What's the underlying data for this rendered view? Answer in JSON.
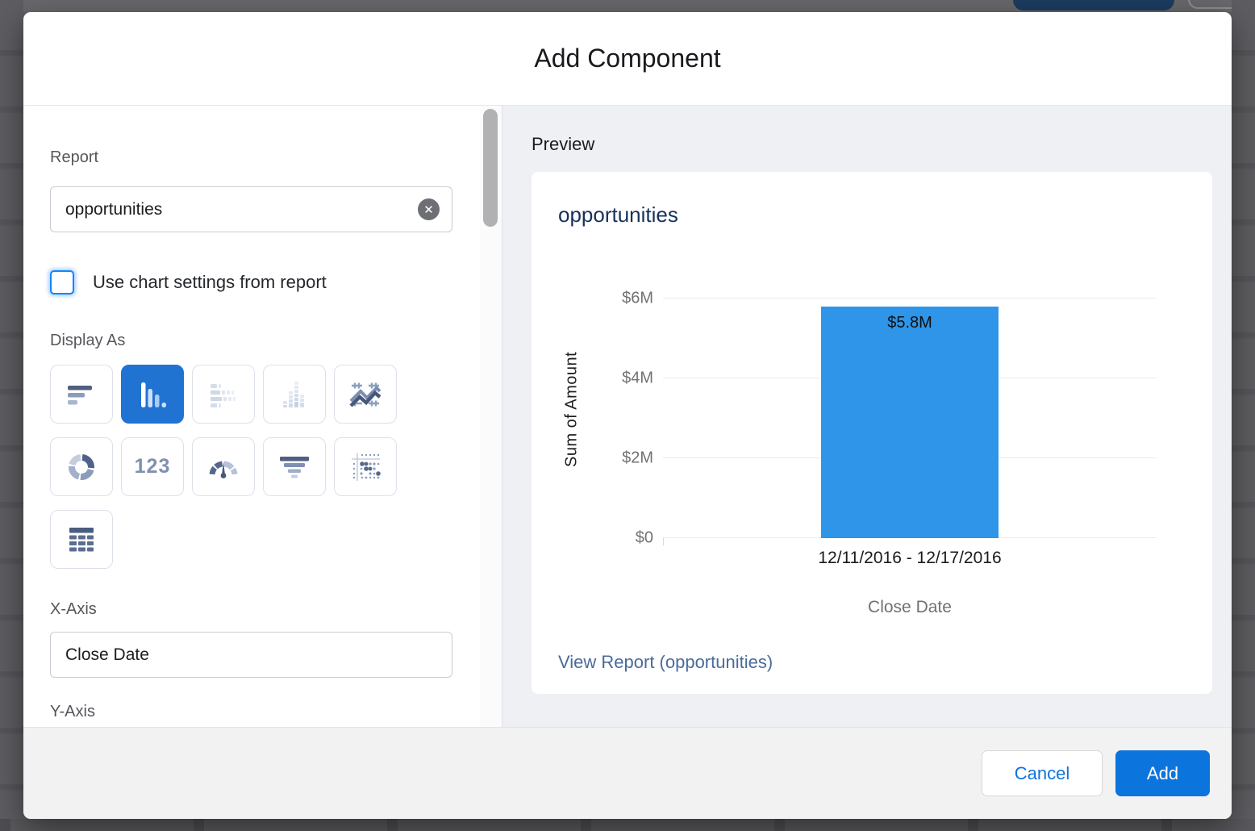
{
  "modal": {
    "title": "Add Component",
    "left_panel": {
      "report_label": "Report",
      "report_value": "opportunities",
      "use_chart_settings_label": "Use chart settings from report",
      "use_chart_settings_checked": false,
      "display_as_label": "Display As",
      "display_options": [
        {
          "name": "horizontal-bar-chart",
          "selected": false,
          "disabled": false
        },
        {
          "name": "vertical-bar-chart",
          "selected": true,
          "disabled": false
        },
        {
          "name": "stacked-horizontal-bar-chart",
          "selected": false,
          "disabled": true
        },
        {
          "name": "stacked-vertical-bar-chart",
          "selected": false,
          "disabled": true
        },
        {
          "name": "line-chart",
          "selected": false,
          "disabled": false
        },
        {
          "name": "donut-chart",
          "selected": false,
          "disabled": false
        },
        {
          "name": "metric",
          "label": "123",
          "selected": false,
          "disabled": false
        },
        {
          "name": "gauge",
          "selected": false,
          "disabled": false
        },
        {
          "name": "funnel",
          "selected": false,
          "disabled": false
        },
        {
          "name": "scatter-chart",
          "selected": false,
          "disabled": false
        },
        {
          "name": "table",
          "selected": false,
          "disabled": false
        }
      ],
      "x_axis_label": "X-Axis",
      "x_axis_value": "Close Date",
      "y_axis_label": "Y-Axis"
    },
    "preview": {
      "heading": "Preview",
      "view_report_link": "View Report (opportunities)"
    },
    "footer": {
      "cancel_label": "Cancel",
      "add_label": "Add"
    }
  },
  "chart_data": {
    "type": "bar",
    "title": "opportunities",
    "categories": [
      "12/11/2016 - 12/17/2016"
    ],
    "values": [
      5.8
    ],
    "value_labels": [
      "$5.8M"
    ],
    "value_unit": "USD millions",
    "xlabel": "Close Date",
    "ylabel": "Sum of Amount",
    "yticks": [
      "$0",
      "$2M",
      "$4M",
      "$6M"
    ],
    "ytick_values": [
      0,
      2,
      4,
      6
    ],
    "ylim": [
      0,
      6.45
    ],
    "grid": true,
    "legend": false,
    "bar_color": "#2E95E8"
  },
  "colors": {
    "accent_blue": "#0C74DD",
    "selected_tile_blue": "#2173D2",
    "card_title_navy": "#16325C",
    "link_blue": "#4A6B9B"
  }
}
